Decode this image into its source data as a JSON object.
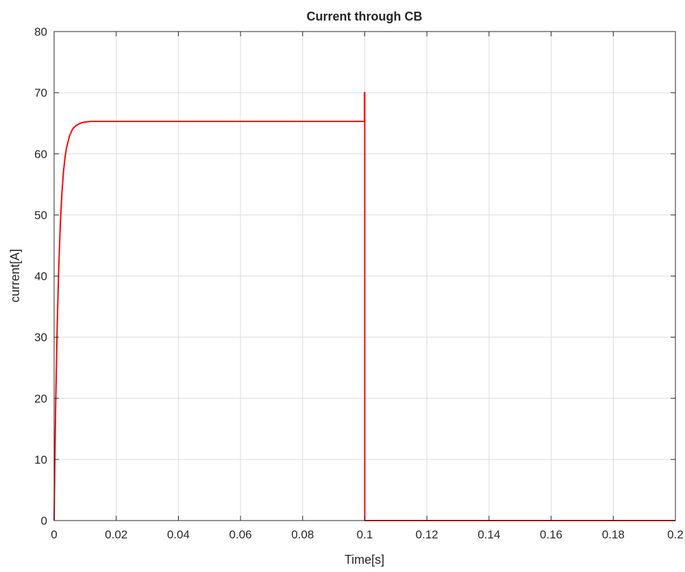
{
  "chart_data": {
    "type": "line",
    "title": "Current through CB",
    "xlabel": "Time[s]",
    "ylabel": "current[A]",
    "xlim": [
      0,
      0.2
    ],
    "ylim": [
      0,
      80
    ],
    "xticks": [
      0,
      0.02,
      0.04,
      0.06,
      0.08,
      0.1,
      0.12,
      0.14,
      0.16,
      0.18,
      0.2
    ],
    "xtick_labels": [
      "0",
      "0.02",
      "0.04",
      "0.06",
      "0.08",
      "0.1",
      "0.12",
      "0.14",
      "0.16",
      "0.18",
      "0.2"
    ],
    "yticks": [
      0,
      10,
      20,
      30,
      40,
      50,
      60,
      70,
      80
    ],
    "ytick_labels": [
      "0",
      "10",
      "20",
      "30",
      "40",
      "50",
      "60",
      "70",
      "80"
    ],
    "grid": true,
    "legend": "none",
    "series": [
      {
        "color": "#ff0000",
        "x": [
          0,
          0.0002,
          0.0005,
          0.001,
          0.0015,
          0.002,
          0.0025,
          0.003,
          0.0035,
          0.004,
          0.005,
          0.006,
          0.007,
          0.008,
          0.009,
          0.01,
          0.012,
          0.015,
          0.02,
          0.03,
          0.05,
          0.08,
          0.0999,
          0.0999,
          0.1,
          0.1,
          0.12,
          0.15,
          0.2
        ],
        "y": [
          0,
          8.5,
          19.0,
          32.0,
          41.5,
          48.5,
          53.5,
          57.0,
          59.4,
          61.0,
          63.0,
          64.1,
          64.6,
          64.9,
          65.1,
          65.2,
          65.3,
          65.3,
          65.3,
          65.3,
          65.3,
          65.3,
          65.3,
          70.0,
          70.0,
          0,
          0,
          0,
          0
        ]
      }
    ]
  }
}
